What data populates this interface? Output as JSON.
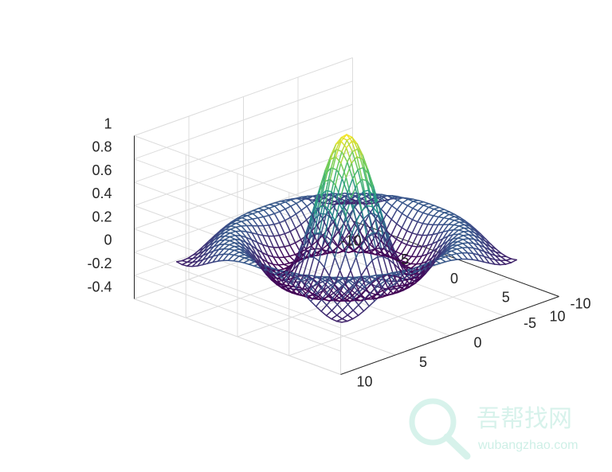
{
  "chart_data": {
    "type": "mesh",
    "function": "z = sin(r)/r, r = sqrt(x^2 + y^2)",
    "x_range": [
      -8,
      8
    ],
    "y_range": [
      -8,
      8
    ],
    "grid_step": 0.5,
    "xlim": [
      -10,
      10
    ],
    "ylim": [
      -10,
      10
    ],
    "zlim": [
      -0.4,
      1
    ],
    "x_ticks": [
      "-10",
      "-5",
      "0",
      "5",
      "10"
    ],
    "y_ticks": [
      "-10",
      "-5",
      "0",
      "5",
      "10"
    ],
    "z_ticks": [
      "-0.4",
      "-0.2",
      "0",
      "0.2",
      "0.4",
      "0.6",
      "0.8",
      "1"
    ],
    "colormap": [
      "#440154",
      "#3b528b",
      "#21918c",
      "#5ec962",
      "#fde725"
    ],
    "grid": true,
    "title": "",
    "xlabel": "",
    "ylabel": "",
    "zlabel": ""
  },
  "watermark": {
    "logo": "magnifier-logo",
    "text": "吾帮找网",
    "subtext": "wubangzhao.com"
  }
}
